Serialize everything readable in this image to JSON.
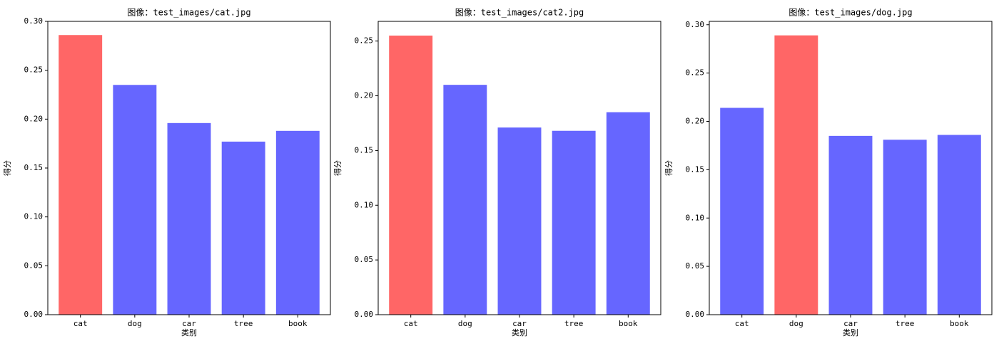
{
  "chart_data": [
    {
      "type": "bar",
      "title": "图像：test_images/cat.jpg",
      "xlabel": "类别",
      "ylabel": "得分",
      "categories": [
        "cat",
        "dog",
        "car",
        "tree",
        "book"
      ],
      "values": [
        0.286,
        0.235,
        0.196,
        0.177,
        0.188
      ],
      "colors": [
        "#ff6666",
        "#6666ff",
        "#6666ff",
        "#6666ff",
        "#6666ff"
      ],
      "ylim": [
        0,
        0.3
      ],
      "yticks": [
        {
          "value": 0,
          "label": "0.00"
        },
        0.05,
        {
          "value": 0.1,
          "label": "0.10"
        },
        0.15,
        {
          "value": 0.2,
          "label": "0.20"
        },
        0.25,
        {
          "value": 0.3,
          "label": "0.30"
        }
      ]
    },
    {
      "type": "bar",
      "title": "图像：test_images/cat2.jpg",
      "xlabel": "类别",
      "ylabel": "得分",
      "categories": [
        "cat",
        "dog",
        "car",
        "tree",
        "book"
      ],
      "values": [
        0.255,
        0.21,
        0.171,
        0.168,
        0.185
      ],
      "colors": [
        "#ff6666",
        "#6666ff",
        "#6666ff",
        "#6666ff",
        "#6666ff"
      ],
      "ylim": [
        0,
        0.268
      ],
      "yticks": [
        {
          "value": 0,
          "label": "0.00"
        },
        0.05,
        {
          "value": 0.1,
          "label": "0.10"
        },
        0.15,
        {
          "value": 0.2,
          "label": "0.20"
        },
        0.25
      ]
    },
    {
      "type": "bar",
      "title": "图像：test_images/dog.jpg",
      "xlabel": "类别",
      "ylabel": "得分",
      "categories": [
        "cat",
        "dog",
        "car",
        "tree",
        "book"
      ],
      "values": [
        0.214,
        0.289,
        0.185,
        0.181,
        0.186
      ],
      "colors": [
        "#6666ff",
        "#ff6666",
        "#6666ff",
        "#6666ff",
        "#6666ff"
      ],
      "ylim": [
        0,
        0.3035
      ],
      "yticks": [
        {
          "value": 0,
          "label": "0.00"
        },
        0.05,
        {
          "value": 0.1,
          "label": "0.10"
        },
        0.15,
        {
          "value": 0.2,
          "label": "0.20"
        },
        0.25,
        {
          "value": 0.3,
          "label": "0.30"
        }
      ]
    }
  ]
}
